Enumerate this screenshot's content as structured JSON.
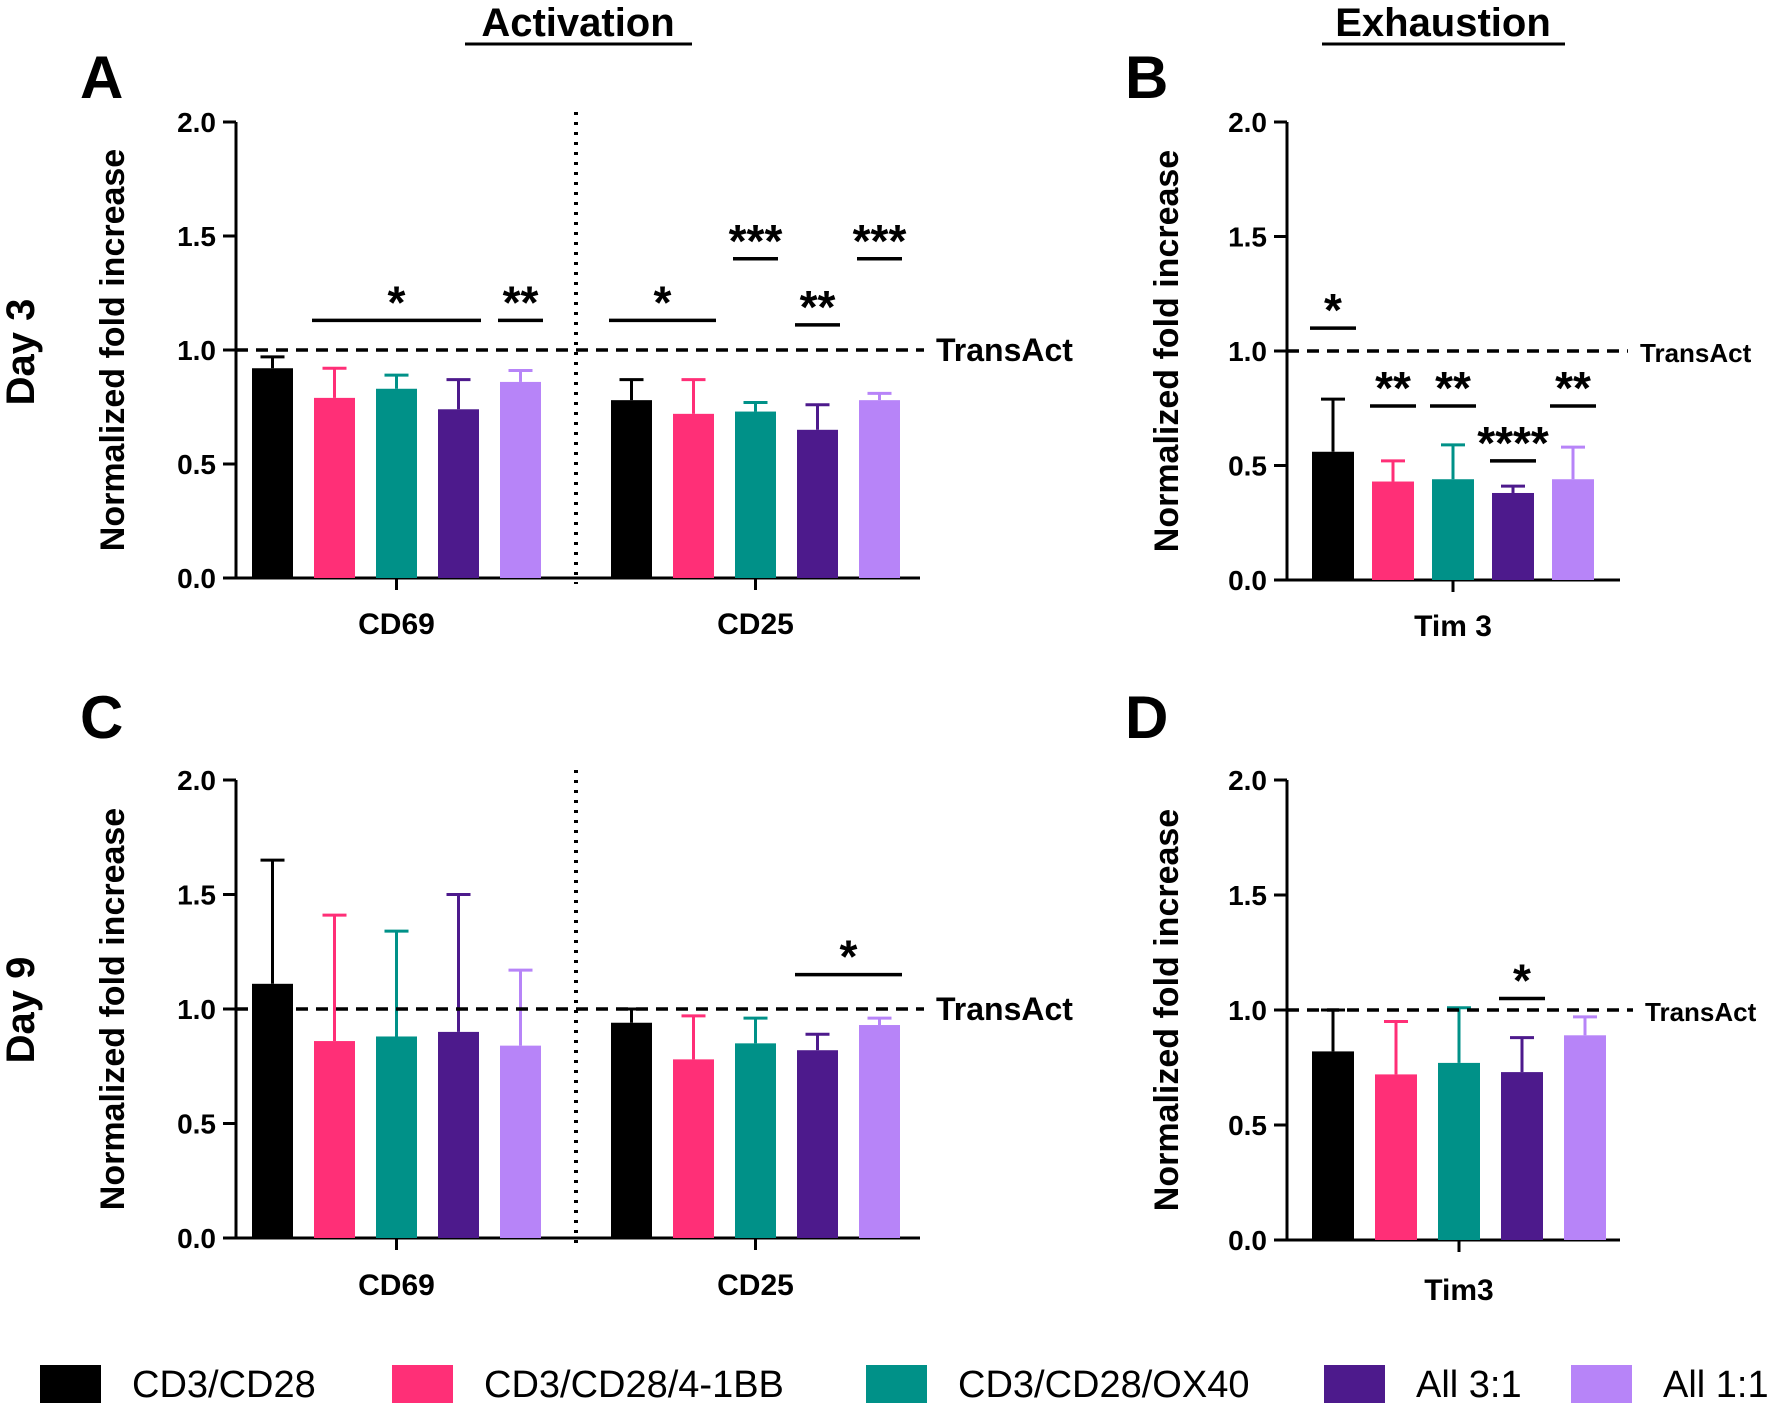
{
  "headers": {
    "activation": "Activation",
    "exhaustion": "Exhaustion"
  },
  "row_labels": {
    "day3": "Day 3",
    "day9": "Day 9"
  },
  "legend": [
    {
      "label": "CD3/CD28",
      "color": "#000000"
    },
    {
      "label": "CD3/CD28/4-1BB",
      "color": "#FF2F77"
    },
    {
      "label": "CD3/CD28/OX40",
      "color": "#009188"
    },
    {
      "label": "All 3:1",
      "color": "#4D1A8C"
    },
    {
      "label": "All 1:1",
      "color": "#B784F8"
    }
  ],
  "chart_data": [
    {
      "panel": "A",
      "type": "bar",
      "title": "",
      "ylabel": "Normalized fold increase",
      "ylim": [
        0,
        2.0
      ],
      "yticks": [
        "0.0",
        "0.5",
        "1.0",
        "1.5",
        "2.0"
      ],
      "reference_line": {
        "value": 1.0,
        "label": "TransAct"
      },
      "groups": [
        {
          "name": "CD69",
          "values": [
            0.92,
            0.79,
            0.83,
            0.74,
            0.86
          ],
          "errors": [
            0.05,
            0.13,
            0.06,
            0.13,
            0.05
          ]
        },
        {
          "name": "CD25",
          "values": [
            0.78,
            0.72,
            0.73,
            0.65,
            0.78
          ],
          "errors": [
            0.09,
            0.15,
            0.04,
            0.11,
            0.03
          ]
        }
      ],
      "significance": [
        {
          "group": 0,
          "from": 1,
          "to": 3,
          "y": 1.13,
          "label": "*"
        },
        {
          "group": 0,
          "from": 4,
          "to": 4,
          "y": 1.13,
          "label": "**"
        },
        {
          "group": 1,
          "from": 0,
          "to": 1,
          "y": 1.13,
          "label": "*"
        },
        {
          "group": 1,
          "from": 2,
          "to": 2,
          "y": 1.4,
          "label": "***"
        },
        {
          "group": 1,
          "from": 3,
          "to": 3,
          "y": 1.11,
          "label": "**"
        },
        {
          "group": 1,
          "from": 4,
          "to": 4,
          "y": 1.4,
          "label": "***"
        }
      ]
    },
    {
      "panel": "B",
      "type": "bar",
      "title": "",
      "ylabel": "Normalized fold increase",
      "ylim": [
        0,
        2.0
      ],
      "yticks": [
        "0.0",
        "0.5",
        "1.0",
        "1.5",
        "2.0"
      ],
      "reference_line": {
        "value": 1.0,
        "label": "TransAct"
      },
      "groups": [
        {
          "name": "Tim 3",
          "values": [
            0.56,
            0.43,
            0.44,
            0.38,
            0.44
          ],
          "errors": [
            0.23,
            0.09,
            0.15,
            0.03,
            0.14
          ]
        }
      ],
      "significance": [
        {
          "group": 0,
          "from": 0,
          "to": 0,
          "y": 1.1,
          "label": "*"
        },
        {
          "group": 0,
          "from": 1,
          "to": 1,
          "y": 0.76,
          "label": "**"
        },
        {
          "group": 0,
          "from": 2,
          "to": 2,
          "y": 0.76,
          "label": "**"
        },
        {
          "group": 0,
          "from": 3,
          "to": 3,
          "y": 0.52,
          "label": "****"
        },
        {
          "group": 0,
          "from": 4,
          "to": 4,
          "y": 0.76,
          "label": "**"
        }
      ]
    },
    {
      "panel": "C",
      "type": "bar",
      "title": "",
      "ylabel": "Normalized fold increase",
      "ylim": [
        0,
        2.0
      ],
      "yticks": [
        "0.0",
        "0.5",
        "1.0",
        "1.5",
        "2.0"
      ],
      "reference_line": {
        "value": 1.0,
        "label": "TransAct"
      },
      "groups": [
        {
          "name": "CD69",
          "values": [
            1.11,
            0.86,
            0.88,
            0.9,
            0.84
          ],
          "errors": [
            0.54,
            0.55,
            0.46,
            0.6,
            0.33
          ]
        },
        {
          "name": "CD25",
          "values": [
            0.94,
            0.78,
            0.85,
            0.82,
            0.93
          ],
          "errors": [
            0.06,
            0.19,
            0.11,
            0.07,
            0.03
          ]
        }
      ],
      "significance": [
        {
          "group": 1,
          "from": 3,
          "to": 4,
          "y": 1.15,
          "label": "*"
        }
      ]
    },
    {
      "panel": "D",
      "type": "bar",
      "title": "",
      "ylabel": "Normalized fold increase",
      "ylim": [
        0,
        2.0
      ],
      "yticks": [
        "0.0",
        "0.5",
        "1.0",
        "1.5",
        "2.0"
      ],
      "reference_line": {
        "value": 1.0,
        "label": "TransAct"
      },
      "groups": [
        {
          "name": "Tim3",
          "values": [
            0.82,
            0.72,
            0.77,
            0.73,
            0.89
          ],
          "errors": [
            0.18,
            0.23,
            0.24,
            0.15,
            0.08
          ]
        }
      ],
      "significance": [
        {
          "group": 0,
          "from": 3,
          "to": 3,
          "y": 1.05,
          "label": "*"
        }
      ]
    }
  ]
}
